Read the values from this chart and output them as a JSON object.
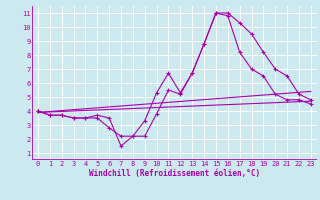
{
  "xlabel": "Windchill (Refroidissement éolien,°C)",
  "xlim": [
    -0.5,
    23.5
  ],
  "ylim": [
    0.5,
    11.5
  ],
  "xticks": [
    0,
    1,
    2,
    3,
    4,
    5,
    6,
    7,
    8,
    9,
    10,
    11,
    12,
    13,
    14,
    15,
    16,
    17,
    18,
    19,
    20,
    21,
    22,
    23
  ],
  "yticks": [
    1,
    2,
    3,
    4,
    5,
    6,
    7,
    8,
    9,
    10,
    11
  ],
  "bg_color": "#cce9f0",
  "line_color": "#aa00aa",
  "grid_color": "#ffffff",
  "line1_x": [
    0,
    1,
    2,
    3,
    4,
    5,
    6,
    7,
    8,
    9,
    10,
    11,
    12,
    13,
    14,
    15,
    16,
    17,
    18,
    19,
    20,
    21,
    22,
    23
  ],
  "line1_y": [
    4.0,
    3.7,
    3.7,
    3.5,
    3.5,
    3.5,
    2.8,
    2.2,
    2.2,
    3.3,
    5.3,
    6.7,
    5.3,
    6.7,
    8.8,
    11.0,
    11.0,
    10.3,
    9.5,
    8.2,
    7.0,
    6.5,
    5.2,
    4.8
  ],
  "line2_x": [
    0,
    1,
    2,
    3,
    4,
    5,
    6,
    7,
    8,
    9,
    10,
    11,
    12,
    13,
    14,
    15,
    16,
    17,
    18,
    19,
    20,
    21,
    22,
    23
  ],
  "line2_y": [
    4.0,
    3.7,
    3.7,
    3.5,
    3.5,
    3.7,
    3.5,
    1.5,
    2.2,
    2.2,
    3.8,
    5.5,
    5.2,
    6.7,
    8.8,
    11.0,
    10.8,
    8.2,
    7.0,
    6.5,
    5.2,
    4.8,
    4.8,
    4.5
  ],
  "line3_x": [
    0,
    23
  ],
  "line3_y": [
    3.9,
    4.7
  ],
  "line4_x": [
    0,
    23
  ],
  "line4_y": [
    3.9,
    5.4
  ],
  "xlabel_fontsize": 5.5,
  "tick_fontsize": 5.0
}
